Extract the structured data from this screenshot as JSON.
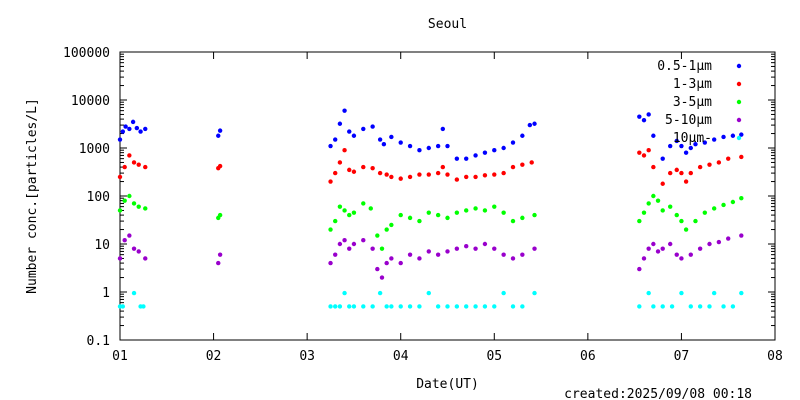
{
  "chart_data": {
    "type": "scatter",
    "title": "Seoul",
    "xlabel": "Date(UT)",
    "ylabel": "Number conc.[particles/L]",
    "footer": "created:2025/09/08 00:18",
    "y_scale": "log",
    "ylim": [
      0.1,
      100000
    ],
    "xlim": [
      1,
      8
    ],
    "x_ticks": [
      "01",
      "02",
      "03",
      "04",
      "05",
      "06",
      "07",
      "08"
    ],
    "y_ticks": [
      "0.1",
      "1",
      "10",
      "100",
      "1000",
      "10000",
      "100000"
    ],
    "legend_position": "top-right",
    "grid": false,
    "series": [
      {
        "name": "0.5-1μm",
        "color": "#0000ff",
        "points": [
          [
            1.0,
            1500
          ],
          [
            1.03,
            2200
          ],
          [
            1.06,
            2800
          ],
          [
            1.1,
            2500
          ],
          [
            1.14,
            3500
          ],
          [
            1.18,
            2600
          ],
          [
            1.22,
            2200
          ],
          [
            1.27,
            2500
          ],
          [
            2.05,
            1800
          ],
          [
            2.07,
            2300
          ],
          [
            3.25,
            1100
          ],
          [
            3.3,
            1500
          ],
          [
            3.35,
            3200
          ],
          [
            3.4,
            6000
          ],
          [
            3.45,
            2200
          ],
          [
            3.5,
            1800
          ],
          [
            3.6,
            2500
          ],
          [
            3.7,
            2800
          ],
          [
            3.78,
            1500
          ],
          [
            3.82,
            1200
          ],
          [
            3.9,
            1700
          ],
          [
            4.0,
            1300
          ],
          [
            4.1,
            1100
          ],
          [
            4.2,
            900
          ],
          [
            4.3,
            1000
          ],
          [
            4.4,
            1100
          ],
          [
            4.45,
            2500
          ],
          [
            4.5,
            1100
          ],
          [
            4.6,
            600
          ],
          [
            4.7,
            600
          ],
          [
            4.8,
            700
          ],
          [
            4.9,
            800
          ],
          [
            5.0,
            900
          ],
          [
            5.1,
            1000
          ],
          [
            5.2,
            1300
          ],
          [
            5.3,
            1800
          ],
          [
            5.38,
            3000
          ],
          [
            5.43,
            3200
          ],
          [
            6.55,
            4500
          ],
          [
            6.6,
            3800
          ],
          [
            6.65,
            5000
          ],
          [
            6.7,
            1800
          ],
          [
            6.8,
            600
          ],
          [
            6.88,
            1100
          ],
          [
            6.95,
            1400
          ],
          [
            7.0,
            1100
          ],
          [
            7.05,
            800
          ],
          [
            7.1,
            1000
          ],
          [
            7.15,
            1200
          ],
          [
            7.25,
            1300
          ],
          [
            7.35,
            1500
          ],
          [
            7.45,
            1700
          ],
          [
            7.55,
            1800
          ],
          [
            7.64,
            1900
          ]
        ]
      },
      {
        "name": "1-3μm",
        "color": "#ff0000",
        "points": [
          [
            1.0,
            250
          ],
          [
            1.05,
            400
          ],
          [
            1.1,
            700
          ],
          [
            1.15,
            500
          ],
          [
            1.2,
            450
          ],
          [
            1.27,
            400
          ],
          [
            2.05,
            380
          ],
          [
            2.07,
            420
          ],
          [
            3.25,
            200
          ],
          [
            3.3,
            300
          ],
          [
            3.35,
            500
          ],
          [
            3.4,
            900
          ],
          [
            3.45,
            350
          ],
          [
            3.5,
            320
          ],
          [
            3.6,
            400
          ],
          [
            3.7,
            380
          ],
          [
            3.78,
            300
          ],
          [
            3.85,
            280
          ],
          [
            3.9,
            250
          ],
          [
            4.0,
            230
          ],
          [
            4.1,
            250
          ],
          [
            4.2,
            280
          ],
          [
            4.3,
            280
          ],
          [
            4.4,
            300
          ],
          [
            4.45,
            400
          ],
          [
            4.5,
            280
          ],
          [
            4.6,
            220
          ],
          [
            4.7,
            250
          ],
          [
            4.8,
            250
          ],
          [
            4.9,
            270
          ],
          [
            5.0,
            280
          ],
          [
            5.1,
            300
          ],
          [
            5.2,
            400
          ],
          [
            5.3,
            450
          ],
          [
            5.4,
            500
          ],
          [
            6.55,
            800
          ],
          [
            6.6,
            700
          ],
          [
            6.65,
            900
          ],
          [
            6.7,
            400
          ],
          [
            6.8,
            180
          ],
          [
            6.88,
            300
          ],
          [
            6.95,
            350
          ],
          [
            7.0,
            300
          ],
          [
            7.05,
            200
          ],
          [
            7.1,
            300
          ],
          [
            7.2,
            400
          ],
          [
            7.3,
            450
          ],
          [
            7.4,
            500
          ],
          [
            7.5,
            600
          ],
          [
            7.64,
            650
          ]
        ]
      },
      {
        "name": "3-5μm",
        "color": "#00ff00",
        "points": [
          [
            1.0,
            50
          ],
          [
            1.05,
            80
          ],
          [
            1.1,
            100
          ],
          [
            1.15,
            70
          ],
          [
            1.2,
            60
          ],
          [
            1.27,
            55
          ],
          [
            2.05,
            35
          ],
          [
            2.07,
            40
          ],
          [
            3.25,
            20
          ],
          [
            3.3,
            30
          ],
          [
            3.35,
            60
          ],
          [
            3.4,
            50
          ],
          [
            3.45,
            40
          ],
          [
            3.5,
            45
          ],
          [
            3.6,
            70
          ],
          [
            3.68,
            55
          ],
          [
            3.75,
            15
          ],
          [
            3.8,
            8
          ],
          [
            3.85,
            20
          ],
          [
            3.9,
            25
          ],
          [
            4.0,
            40
          ],
          [
            4.1,
            35
          ],
          [
            4.2,
            30
          ],
          [
            4.3,
            45
          ],
          [
            4.4,
            40
          ],
          [
            4.5,
            35
          ],
          [
            4.6,
            45
          ],
          [
            4.7,
            50
          ],
          [
            4.8,
            55
          ],
          [
            4.9,
            50
          ],
          [
            5.0,
            60
          ],
          [
            5.1,
            45
          ],
          [
            5.2,
            30
          ],
          [
            5.3,
            35
          ],
          [
            5.43,
            40
          ],
          [
            6.55,
            30
          ],
          [
            6.6,
            45
          ],
          [
            6.65,
            70
          ],
          [
            6.7,
            100
          ],
          [
            6.75,
            80
          ],
          [
            6.8,
            50
          ],
          [
            6.88,
            60
          ],
          [
            6.95,
            40
          ],
          [
            7.0,
            30
          ],
          [
            7.05,
            20
          ],
          [
            7.15,
            30
          ],
          [
            7.25,
            45
          ],
          [
            7.35,
            55
          ],
          [
            7.45,
            65
          ],
          [
            7.55,
            75
          ],
          [
            7.64,
            90
          ]
        ]
      },
      {
        "name": "5-10μm",
        "color": "#9900cc",
        "points": [
          [
            1.0,
            5
          ],
          [
            1.05,
            12
          ],
          [
            1.1,
            15
          ],
          [
            1.15,
            8
          ],
          [
            1.2,
            7
          ],
          [
            1.27,
            5
          ],
          [
            2.05,
            4
          ],
          [
            2.07,
            6
          ],
          [
            3.25,
            4
          ],
          [
            3.3,
            6
          ],
          [
            3.35,
            10
          ],
          [
            3.4,
            12
          ],
          [
            3.45,
            8
          ],
          [
            3.5,
            10
          ],
          [
            3.6,
            12
          ],
          [
            3.7,
            8
          ],
          [
            3.75,
            3
          ],
          [
            3.8,
            2
          ],
          [
            3.85,
            4
          ],
          [
            3.9,
            5
          ],
          [
            4.0,
            4
          ],
          [
            4.1,
            6
          ],
          [
            4.2,
            5
          ],
          [
            4.3,
            7
          ],
          [
            4.4,
            6
          ],
          [
            4.5,
            7
          ],
          [
            4.6,
            8
          ],
          [
            4.7,
            9
          ],
          [
            4.8,
            8
          ],
          [
            4.9,
            10
          ],
          [
            5.0,
            8
          ],
          [
            5.1,
            6
          ],
          [
            5.2,
            5
          ],
          [
            5.3,
            6
          ],
          [
            5.43,
            8
          ],
          [
            6.55,
            3
          ],
          [
            6.6,
            5
          ],
          [
            6.65,
            8
          ],
          [
            6.7,
            10
          ],
          [
            6.75,
            7
          ],
          [
            6.8,
            8
          ],
          [
            6.88,
            10
          ],
          [
            6.95,
            6
          ],
          [
            7.0,
            5
          ],
          [
            7.1,
            6
          ],
          [
            7.2,
            8
          ],
          [
            7.3,
            10
          ],
          [
            7.4,
            11
          ],
          [
            7.5,
            13
          ],
          [
            7.64,
            15
          ]
        ]
      },
      {
        "name": "10μm-",
        "color": "#00ffff",
        "points": [
          [
            1.0,
            0.5
          ],
          [
            1.03,
            0.5
          ],
          [
            1.15,
            0.95
          ],
          [
            1.22,
            0.5
          ],
          [
            1.25,
            0.5
          ],
          [
            3.25,
            0.5
          ],
          [
            3.3,
            0.5
          ],
          [
            3.35,
            0.5
          ],
          [
            3.4,
            0.95
          ],
          [
            3.45,
            0.5
          ],
          [
            3.5,
            0.5
          ],
          [
            3.6,
            0.5
          ],
          [
            3.7,
            0.5
          ],
          [
            3.78,
            0.95
          ],
          [
            3.85,
            0.5
          ],
          [
            3.9,
            0.5
          ],
          [
            4.0,
            0.5
          ],
          [
            4.1,
            0.5
          ],
          [
            4.2,
            0.5
          ],
          [
            4.3,
            0.95
          ],
          [
            4.4,
            0.5
          ],
          [
            4.5,
            0.5
          ],
          [
            4.6,
            0.5
          ],
          [
            4.7,
            0.5
          ],
          [
            4.8,
            0.5
          ],
          [
            4.9,
            0.5
          ],
          [
            5.0,
            0.5
          ],
          [
            5.1,
            0.95
          ],
          [
            5.2,
            0.5
          ],
          [
            5.3,
            0.5
          ],
          [
            5.43,
            0.95
          ],
          [
            6.55,
            0.5
          ],
          [
            6.65,
            0.95
          ],
          [
            6.7,
            0.5
          ],
          [
            6.8,
            0.5
          ],
          [
            6.9,
            0.5
          ],
          [
            7.0,
            0.95
          ],
          [
            7.1,
            0.5
          ],
          [
            7.2,
            0.5
          ],
          [
            7.3,
            0.5
          ],
          [
            7.35,
            0.95
          ],
          [
            7.45,
            0.5
          ],
          [
            7.55,
            0.5
          ],
          [
            7.64,
            0.95
          ]
        ]
      }
    ]
  }
}
